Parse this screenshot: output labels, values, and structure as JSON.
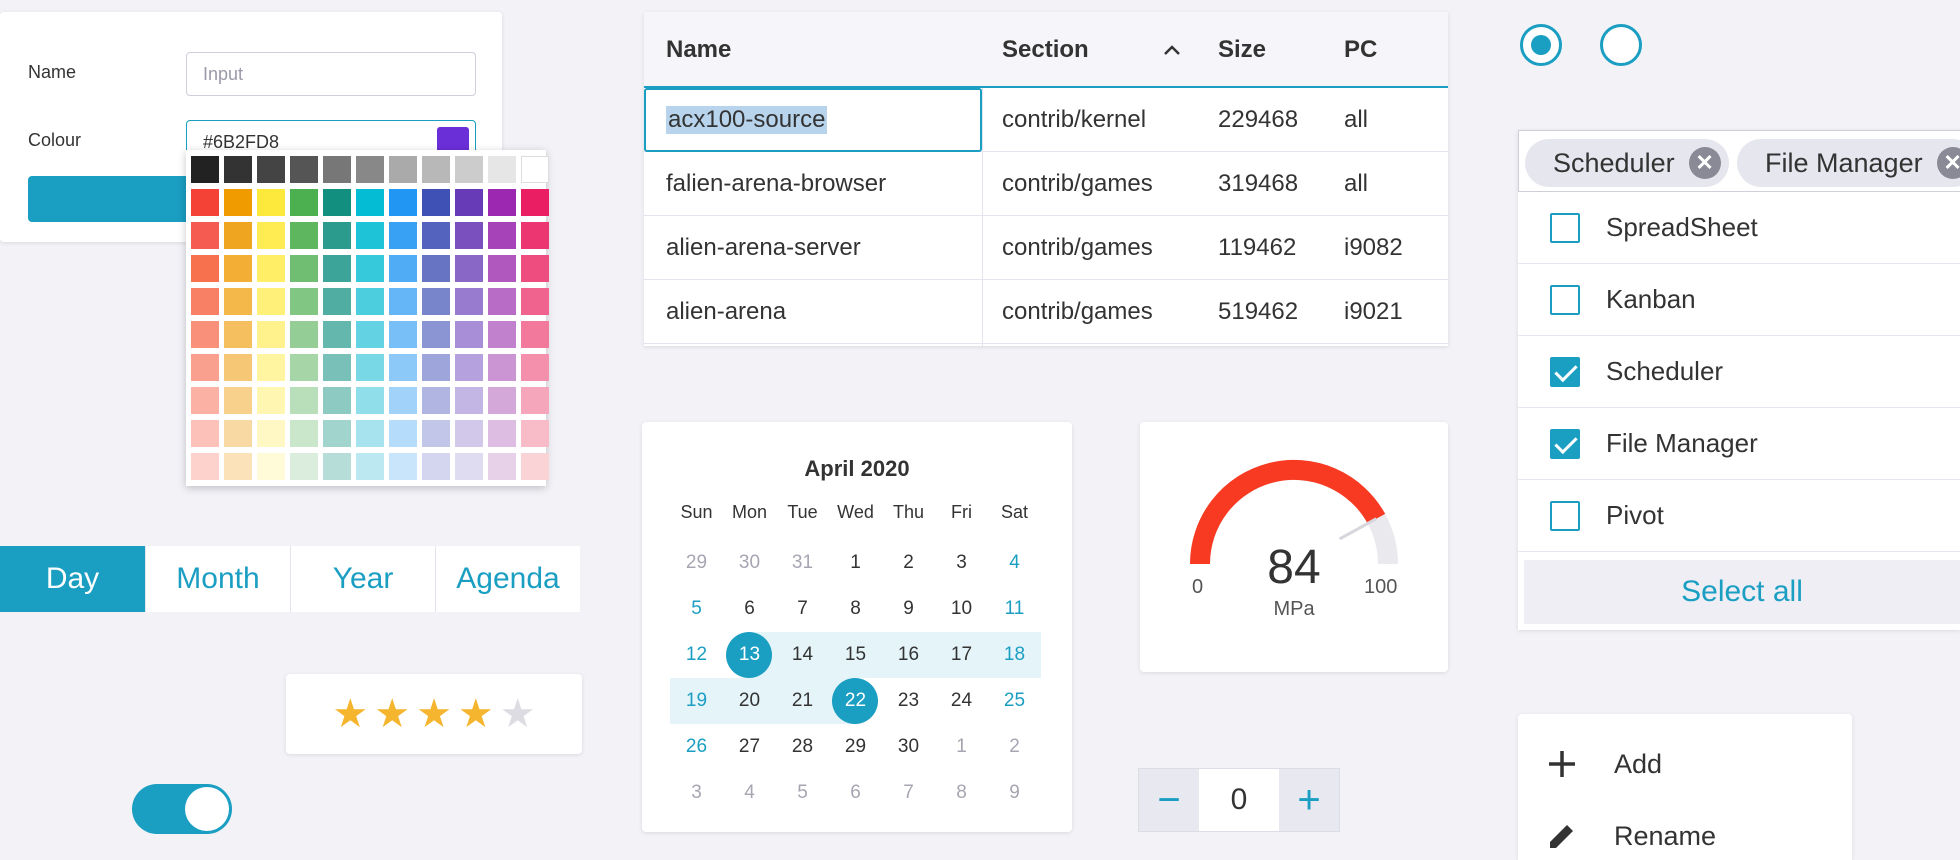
{
  "form": {
    "name_label": "Name",
    "name_placeholder": "Input",
    "colour_label": "Colour",
    "colour_value": "#6B2FD8",
    "colour_hex": "#6B2FD8",
    "button_color": "#1a9ec2"
  },
  "palette": {
    "rows": [
      [
        "#222222",
        "#333333",
        "#444444",
        "#555555",
        "#777777",
        "#888888",
        "#aaaaaa",
        "#b8b8b8",
        "#cccccc",
        "#e6e6e6",
        "#ffffff"
      ],
      [
        "#f44336",
        "#f09c00",
        "#fde93b",
        "#4caf50",
        "#138f7f",
        "#04bcd4",
        "#2196f3",
        "#3f51b5",
        "#673ab7",
        "#9c27b0",
        "#e91e63"
      ],
      [
        "#f65b51",
        "#f0a521",
        "#ffec52",
        "#5eb75f",
        "#2a9b8d",
        "#1fc3d7",
        "#38a1f4",
        "#5463bd",
        "#7a50bf",
        "#a743b8",
        "#ec3671"
      ],
      [
        "#f7714f",
        "#f2ae35",
        "#ffee66",
        "#70be72",
        "#3ca498",
        "#36c8db",
        "#50acf5",
        "#6774c4",
        "#8967c7",
        "#b058be",
        "#ee4d7f"
      ],
      [
        "#f88064",
        "#f3b74a",
        "#fff07a",
        "#82c684",
        "#50ada2",
        "#4dcedf",
        "#65b6f6",
        "#7985cb",
        "#987bcf",
        "#b96cc6",
        "#f0638e"
      ],
      [
        "#f99079",
        "#f5bf60",
        "#fff28c",
        "#94ce96",
        "#64b7ad",
        "#63d3e3",
        "#79bff7",
        "#8b95d3",
        "#a78ed6",
        "#c281cc",
        "#f2799c"
      ],
      [
        "#faa08f",
        "#f6c876",
        "#fff49f",
        "#a6d6a8",
        "#79c1b8",
        "#79d8e6",
        "#8dc9f8",
        "#9da5da",
        "#b5a1dd",
        "#cb95d3",
        "#f490ab"
      ],
      [
        "#fbb1a4",
        "#f8d18c",
        "#fff6b2",
        "#b8deba",
        "#8dcac2",
        "#8fdeea",
        "#a1d2f9",
        "#b0b5e1",
        "#c3b5e4",
        "#d4a9da",
        "#f6a6ba"
      ],
      [
        "#fcc1b8",
        "#f9d9a3",
        "#fff8c5",
        "#cae6cb",
        "#a1d4cd",
        "#a6e3ee",
        "#b5dcfa",
        "#c2c6e8",
        "#d1c8ea",
        "#ddbde1",
        "#f8bcc8"
      ],
      [
        "#fdd2cc",
        "#fbe2b9",
        "#fffad8",
        "#dbeedd",
        "#b6ddd7",
        "#bce9f1",
        "#c9e5fb",
        "#d4d6ef",
        "#dfdbf0",
        "#e6d1e8",
        "#fad3d7"
      ]
    ]
  },
  "views": {
    "tabs": [
      "Day",
      "Month",
      "Year",
      "Agenda"
    ],
    "active": 0
  },
  "rating": {
    "value": 4,
    "max": 5,
    "filled_color": "#f5b52e",
    "empty_color": "#dcdce2"
  },
  "toggle": {
    "on": true
  },
  "table": {
    "columns": [
      "Name",
      "Section",
      "Size",
      "PC"
    ],
    "rows": [
      [
        "acx100-source",
        "contrib/kernel",
        "229468",
        "all"
      ],
      [
        "falien-arena-browser",
        "contrib/games",
        "319468",
        "all"
      ],
      [
        "alien-arena-server",
        "contrib/games",
        "119462",
        "i9082"
      ],
      [
        "alien-arena",
        "contrib/games",
        "519462",
        "i9021"
      ]
    ]
  },
  "calendar": {
    "title": "April 2020",
    "weekdays": [
      "Sun",
      "Mon",
      "Tue",
      "Wed",
      "Thu",
      "Fri",
      "Sat"
    ],
    "weeks": [
      [
        "29",
        "30",
        "31",
        "1",
        "2",
        "3",
        "4"
      ],
      [
        "5",
        "6",
        "7",
        "8",
        "9",
        "10",
        "11"
      ],
      [
        "12",
        "13",
        "14",
        "15",
        "16",
        "17",
        "18"
      ],
      [
        "19",
        "20",
        "21",
        "22",
        "23",
        "24",
        "25"
      ],
      [
        "26",
        "27",
        "28",
        "29",
        "30",
        "1",
        "2"
      ],
      [
        "3",
        "4",
        "5",
        "6",
        "7",
        "8",
        "9"
      ]
    ]
  },
  "gauge": {
    "value": "84",
    "unit": "MPa",
    "min": "0",
    "max": "100",
    "fraction": 0.84,
    "color": "#f83a22"
  },
  "stepper": {
    "minus": "−",
    "value": "0",
    "plus": "+"
  },
  "radios": [
    {
      "checked": true
    },
    {
      "checked": false
    }
  ],
  "multiselect": {
    "chips": [
      "Scheduler",
      "File Manager"
    ],
    "options": [
      {
        "label": "SpreadSheet",
        "checked": false
      },
      {
        "label": "Kanban",
        "checked": false
      },
      {
        "label": "Scheduler",
        "checked": true
      },
      {
        "label": "File Manager",
        "checked": true
      },
      {
        "label": "Pivot",
        "checked": false
      }
    ],
    "select_all": "Select all"
  },
  "menu": {
    "items": [
      {
        "label": "Add",
        "icon": "plus-icon"
      },
      {
        "label": "Rename",
        "icon": "pencil-icon"
      }
    ]
  }
}
